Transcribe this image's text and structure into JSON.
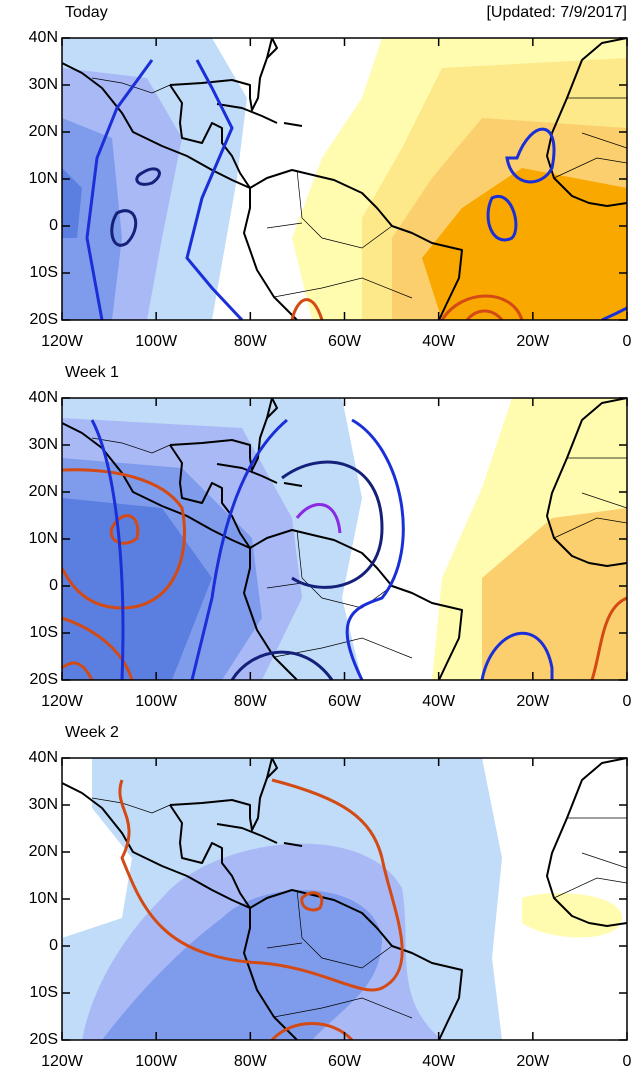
{
  "panels": [
    {
      "title": "Today",
      "updated": "[Updated: 7/9/2017]"
    },
    {
      "title": "Week 1"
    },
    {
      "title": "Week 2"
    }
  ],
  "lat_labels": [
    "40N",
    "30N",
    "20N",
    "10N",
    "0",
    "10S",
    "20S"
  ],
  "lon_labels": [
    "120W",
    "100W",
    "80W",
    "60W",
    "40W",
    "20W",
    "0"
  ]
}
